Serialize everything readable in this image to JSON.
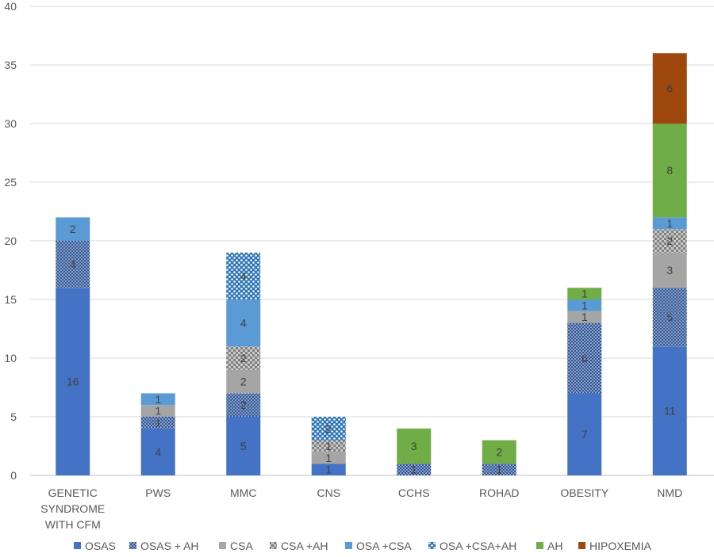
{
  "chart_data": {
    "type": "bar",
    "stacked": true,
    "title": "",
    "xlabel": "",
    "ylabel": "",
    "ylim": [
      0,
      40
    ],
    "yticks": [
      0,
      5,
      10,
      15,
      20,
      25,
      30,
      35,
      40
    ],
    "grid": true,
    "legend_position": "bottom",
    "categories": [
      "GENETIC SYNDROME WITH CFM",
      "PWS",
      "MMC",
      "CNS",
      "CCHS",
      "ROHAD",
      "OBESITY",
      "NMD"
    ],
    "category_lines": [
      [
        "GENETIC",
        "SYNDROME",
        "WITH CFM"
      ],
      [
        "PWS"
      ],
      [
        "MMC"
      ],
      [
        "CNS"
      ],
      [
        "CCHS"
      ],
      [
        "ROHAD"
      ],
      [
        "OBESITY"
      ],
      [
        "NMD"
      ]
    ],
    "series": [
      {
        "name": "OSAS",
        "color": "#4472c4",
        "pattern": "solid",
        "values": [
          16,
          4,
          5,
          1,
          0,
          0,
          7,
          11
        ],
        "labels": [
          "16",
          "4",
          "5",
          "1",
          "",
          "",
          "7",
          "11"
        ]
      },
      {
        "name": "OSAS + AH",
        "color": "#2f5597",
        "pattern": "dots",
        "values": [
          4,
          1,
          2,
          0,
          1,
          1,
          6,
          5
        ],
        "labels": [
          "4",
          "1",
          "2",
          "",
          "1",
          "1",
          "6",
          "5"
        ]
      },
      {
        "name": "CSA",
        "color": "#a5a5a5",
        "pattern": "solid",
        "values": [
          0,
          1,
          2,
          1,
          0,
          0,
          1,
          3
        ],
        "labels": [
          "",
          "1",
          "2",
          "1",
          "",
          "",
          "1",
          "3"
        ]
      },
      {
        "name": "CSA +AH",
        "color": "#7f7f7f",
        "pattern": "checker",
        "values": [
          0,
          0,
          2,
          1,
          0,
          0,
          0,
          2
        ],
        "labels": [
          "",
          "",
          "2",
          "1",
          "",
          "",
          "",
          "2"
        ]
      },
      {
        "name": "OSA +CSA",
        "color": "#5b9bd5",
        "pattern": "solid",
        "values": [
          2,
          1,
          4,
          0,
          0,
          0,
          1,
          1
        ],
        "labels": [
          "2",
          "1",
          "4",
          "",
          "",
          "",
          "1",
          "1"
        ]
      },
      {
        "name": "OSA +CSA+AH",
        "color": "#2e75b6",
        "pattern": "dots-light",
        "values": [
          0,
          0,
          4,
          2,
          0,
          0,
          0,
          0
        ],
        "labels": [
          "",
          "",
          "4",
          "2",
          "",
          "",
          "",
          ""
        ]
      },
      {
        "name": "AH",
        "color": "#70ad47",
        "pattern": "solid",
        "values": [
          0,
          0,
          0,
          0,
          3,
          2,
          1,
          8
        ],
        "labels": [
          "",
          "",
          "",
          "",
          "3",
          "2",
          "1",
          "8"
        ]
      },
      {
        "name": "HIPOXEMIA",
        "color": "#9e480e",
        "pattern": "solid",
        "values": [
          0,
          0,
          0,
          0,
          0,
          0,
          0,
          6
        ],
        "labels": [
          "",
          "",
          "",
          "",
          "",
          "",
          "",
          "6"
        ]
      }
    ]
  }
}
